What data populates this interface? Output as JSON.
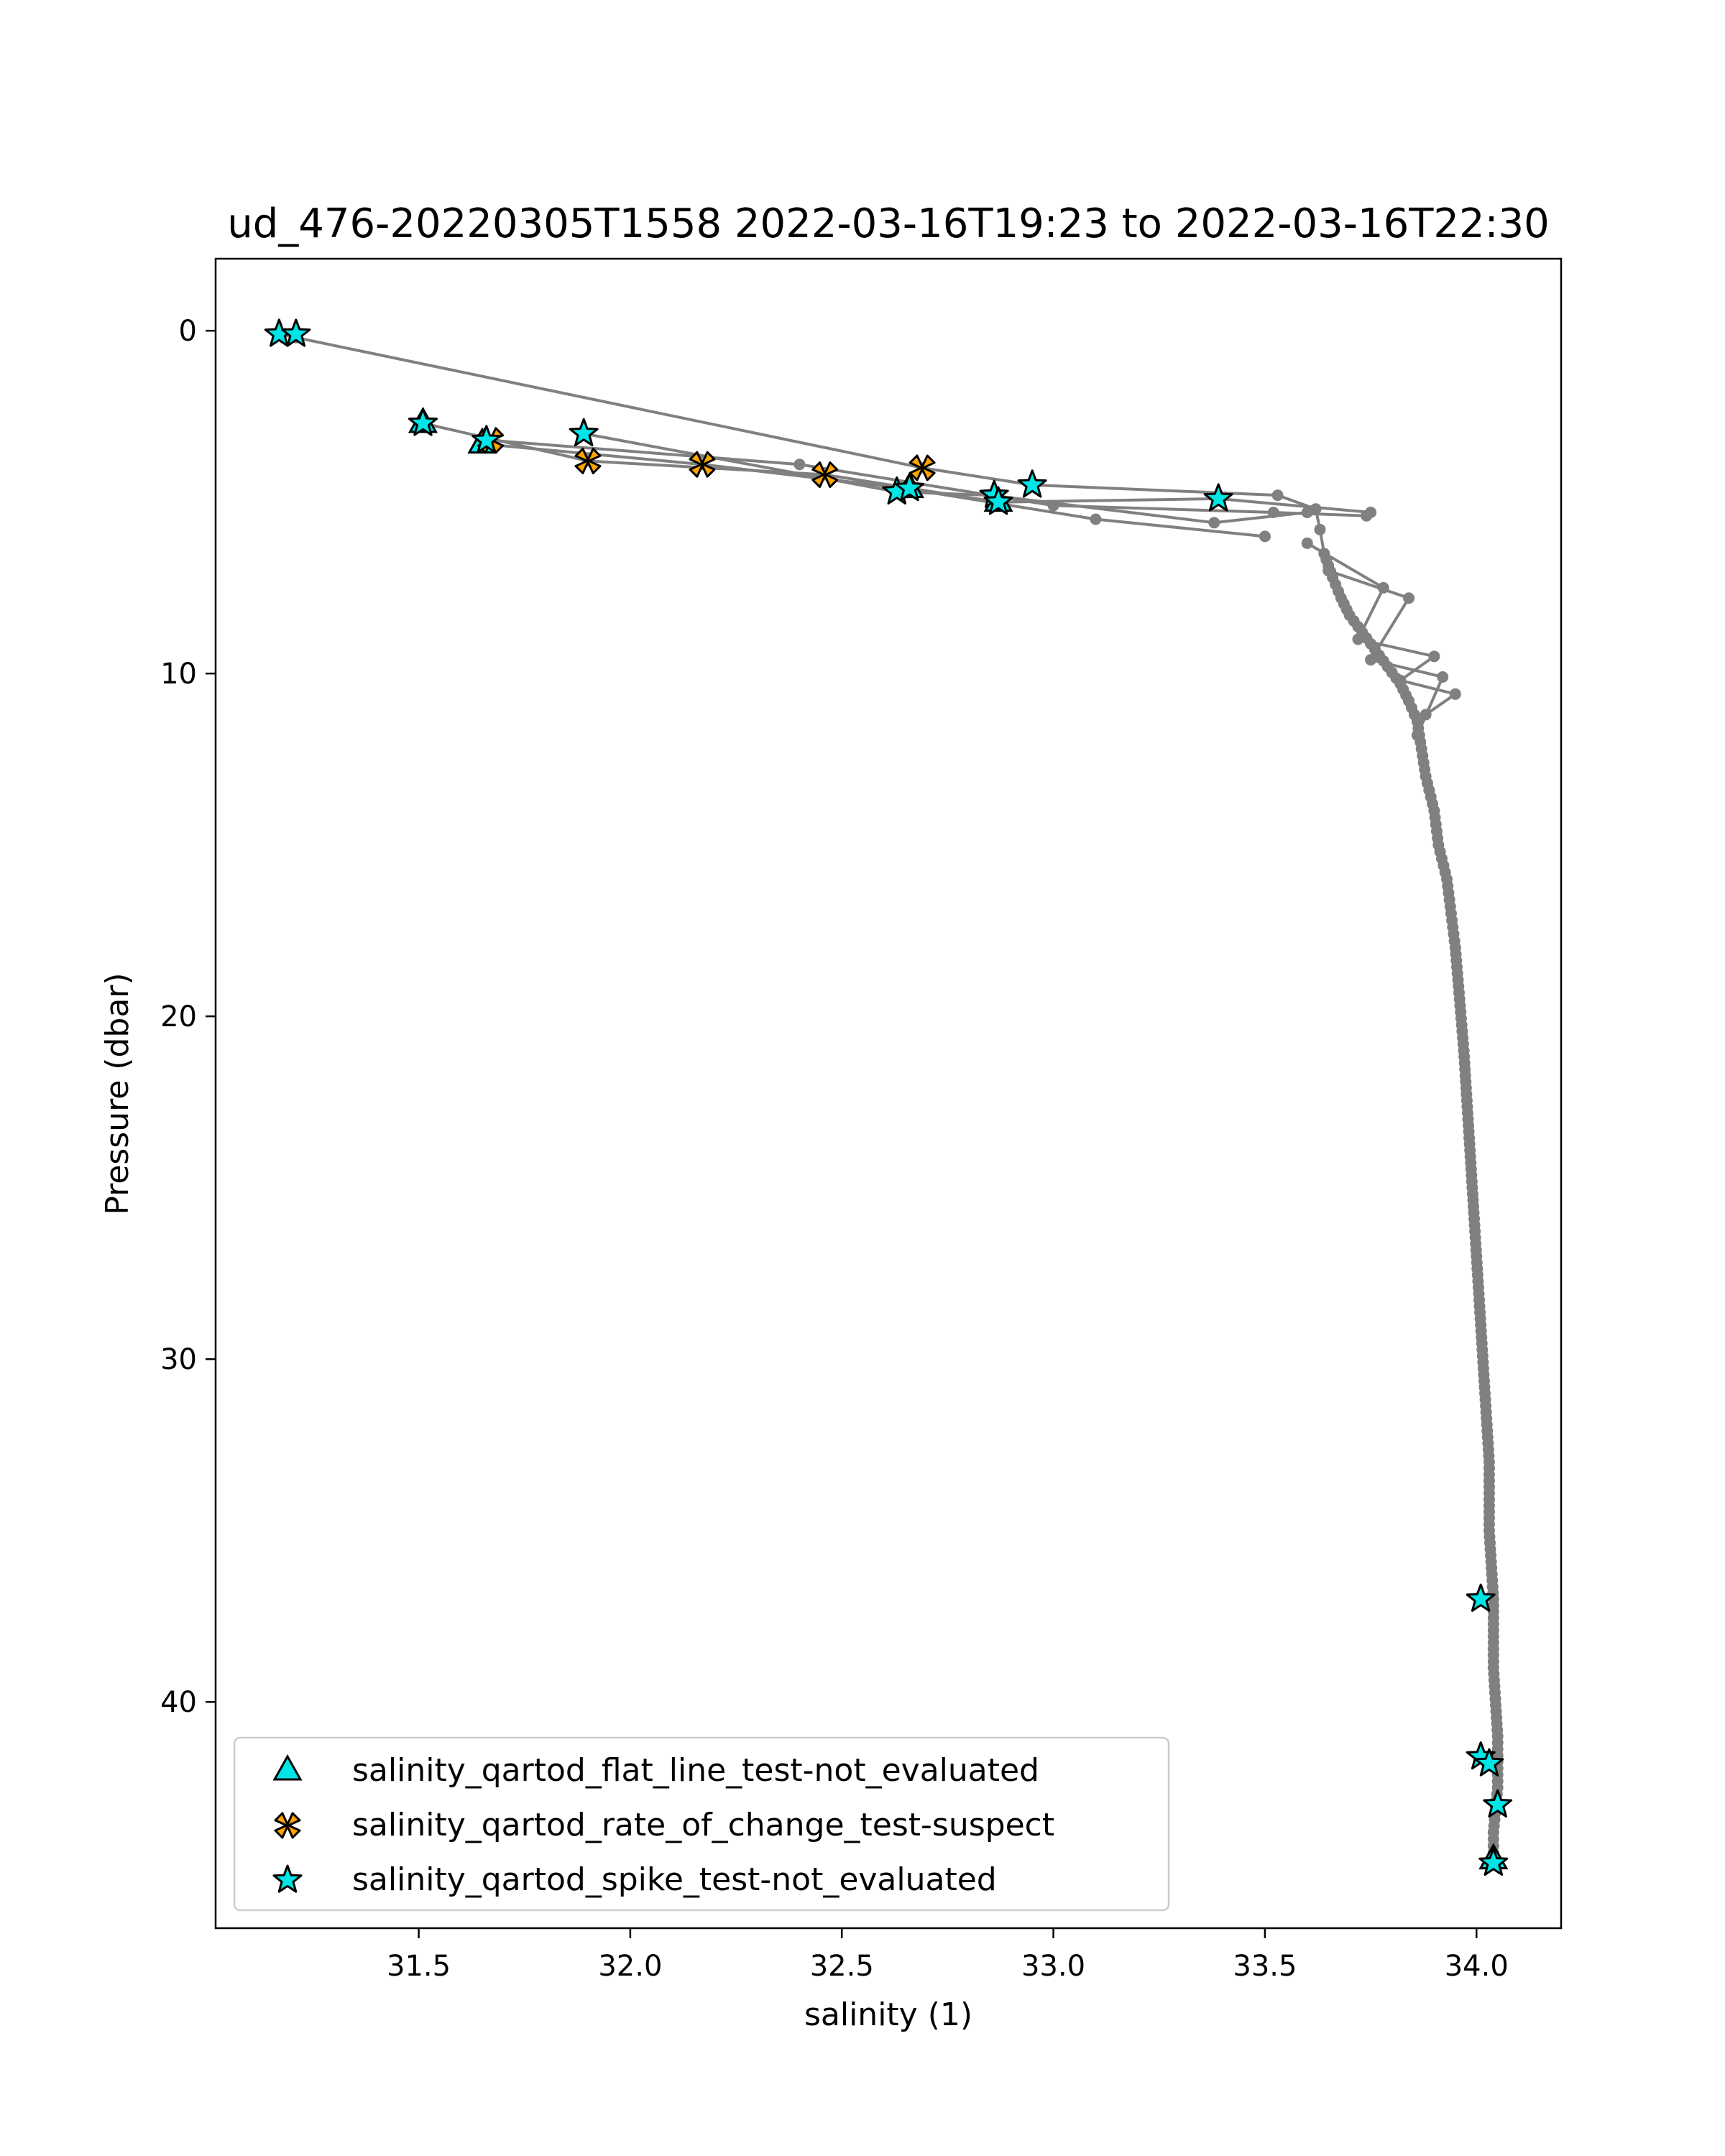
{
  "chart_data": {
    "type": "scatter",
    "title": "ud_476-20220305T1558 2022-03-16T19:23 to 2022-03-16T22:30",
    "xlabel": "salinity (1)",
    "ylabel": "Pressure (dbar)",
    "xlim": [
      31.02,
      34.2
    ],
    "ylim": [
      46.6,
      -2.1
    ],
    "y_inverted": true,
    "grid": false,
    "legend_position": "lower-left",
    "xticks": [
      31.5,
      32.0,
      32.5,
      33.0,
      33.5,
      34.0
    ],
    "xtick_labels": [
      "31.5",
      "32.0",
      "32.5",
      "33.0",
      "33.5",
      "34.0"
    ],
    "yticks": [
      0,
      10,
      20,
      30,
      40
    ],
    "ytick_labels": [
      "0",
      "10",
      "20",
      "30",
      "40"
    ],
    "colors": {
      "profile": "#808080",
      "flat_line": "#00e5e5",
      "rate_of_change": "#ffa500",
      "spike": "#00e5e5",
      "marker_edge": "#000000"
    },
    "profile": {
      "name": "",
      "x": [
        31.17,
        31.21,
        32.69,
        32.95,
        33.53,
        33.62,
        33.63,
        33.64,
        33.66,
        33.68,
        33.7,
        33.73,
        33.76,
        33.79,
        33.82,
        33.84,
        33.86,
        33.87,
        33.88,
        33.9,
        33.91,
        33.93,
        33.94,
        33.95,
        33.96,
        33.97,
        33.98,
        33.99,
        34.0,
        34.01,
        34.02,
        34.03,
        34.03,
        34.04,
        34.04,
        34.05,
        34.05,
        34.04,
        34.04
      ],
      "y": [
        0.1,
        0.2,
        4.0,
        4.5,
        4.8,
        5.2,
        5.8,
        6.5,
        7.2,
        7.8,
        8.3,
        8.8,
        9.3,
        9.8,
        10.3,
        10.8,
        11.4,
        12.2,
        13.0,
        14.0,
        15.0,
        16.0,
        17.0,
        18.0,
        19.5,
        21.0,
        23.0,
        25.0,
        27.0,
        29.0,
        31.0,
        33.0,
        35.0,
        37.0,
        39.0,
        41.0,
        42.5,
        43.8,
        44.6
      ],
      "extra_segments": [
        {
          "x": [
            31.51,
            31.9,
            32.46,
            32.87,
            33.39,
            33.75
          ],
          "y": [
            2.7,
            3.8,
            4.2,
            5.0,
            4.9,
            5.3
          ]
        },
        {
          "x": [
            31.65,
            32.17,
            32.65,
            33.1,
            33.5
          ],
          "y": [
            3.3,
            3.9,
            4.6,
            5.5,
            6.0
          ]
        },
        {
          "x": [
            31.89,
            32.63,
            32.85,
            33.38,
            33.6
          ],
          "y": [
            3.0,
            4.7,
            4.8,
            5.6,
            5.3
          ]
        },
        {
          "x": [
            31.67,
            32.4,
            33.0,
            33.52,
            33.74
          ],
          "y": [
            3.2,
            3.9,
            5.1,
            5.3,
            5.4
          ]
        },
        {
          "x": [
            33.6,
            33.78,
            33.72,
            33.9,
            33.82,
            33.95,
            33.88
          ],
          "y": [
            6.2,
            7.5,
            9.0,
            9.5,
            10.2,
            10.6,
            11.2
          ]
        },
        {
          "x": [
            33.65,
            33.84,
            33.75,
            33.92,
            33.86
          ],
          "y": [
            7.0,
            7.8,
            9.6,
            10.1,
            11.8
          ]
        }
      ]
    },
    "series": [
      {
        "name": "salinity_qartod_flat_line_test-not_evaluated",
        "marker": "triangle",
        "x": [
          31.51,
          31.65,
          32.66,
          32.87,
          34.04
        ],
        "y": [
          2.7,
          3.3,
          4.6,
          5.0,
          44.6
        ]
      },
      {
        "name": "salinity_qartod_rate_of_change_test-suspect",
        "marker": "x",
        "x": [
          31.67,
          31.9,
          32.17,
          32.46,
          32.69
        ],
        "y": [
          3.2,
          3.8,
          3.9,
          4.2,
          4.0
        ]
      },
      {
        "name": "salinity_qartod_spike_test-not_evaluated",
        "marker": "star",
        "x": [
          31.17,
          31.21,
          31.51,
          31.66,
          31.89,
          32.63,
          32.66,
          32.86,
          32.87,
          32.95,
          33.39,
          34.01,
          34.01,
          34.03,
          34.05,
          34.04
        ],
        "y": [
          0.1,
          0.1,
          2.7,
          3.2,
          3.0,
          4.7,
          4.6,
          4.8,
          5.0,
          4.5,
          4.9,
          37.0,
          41.6,
          41.8,
          43.0,
          44.7
        ]
      }
    ]
  }
}
